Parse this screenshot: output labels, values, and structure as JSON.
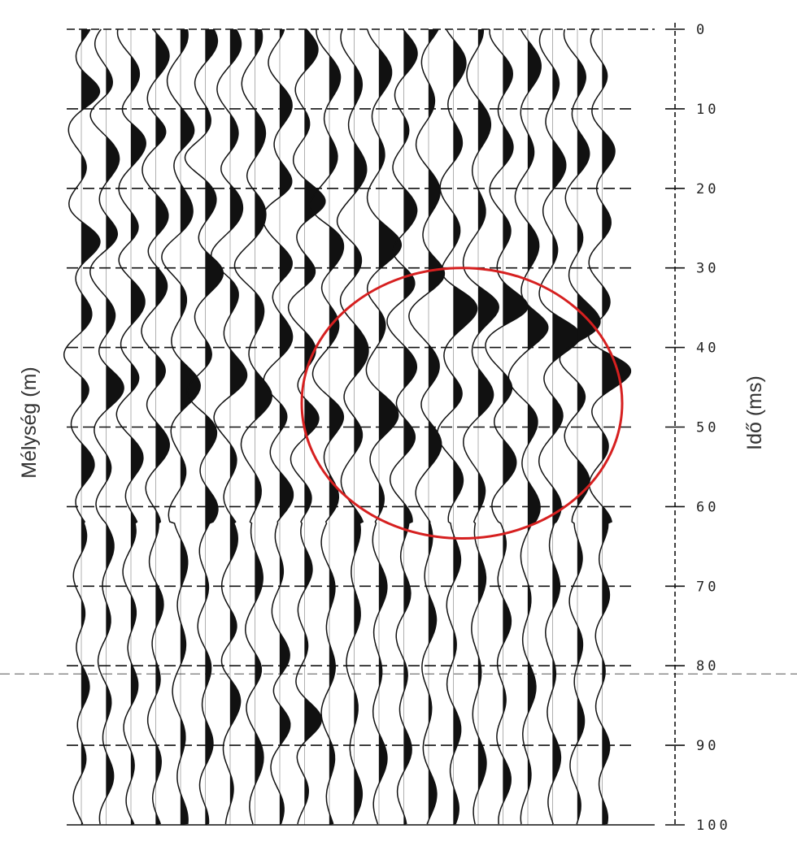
{
  "chart_data": {
    "type": "seismogram",
    "title": "",
    "left_axis_label": "Mélység (m)",
    "right_axis_label": "Idő (ms)",
    "time_axis": {
      "range": [
        0,
        100
      ],
      "ticks": [
        0,
        10,
        20,
        30,
        40,
        50,
        60,
        70,
        80,
        90,
        100
      ],
      "tick_labels": [
        "0",
        "10",
        "20",
        "30",
        "40",
        "50",
        "60",
        "70",
        "80",
        "90",
        "100"
      ]
    },
    "gridlines": "dashed, every 10 ms",
    "trace_count": 22,
    "wiggle_fill": "black (positive lobes)",
    "highlight": {
      "shape": "circle",
      "color": "#d62020",
      "time_range": [
        30,
        64
      ]
    },
    "colors": {
      "ink": "#111111",
      "highlight": "#d62020"
    }
  }
}
